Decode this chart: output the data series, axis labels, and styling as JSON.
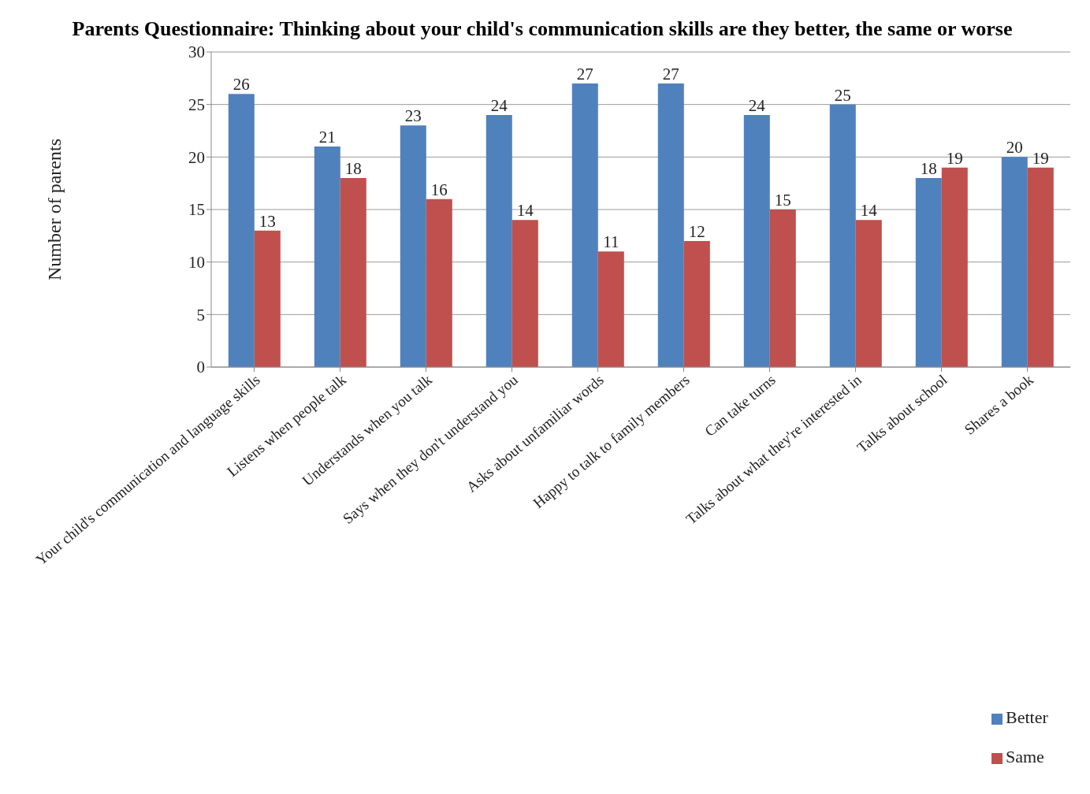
{
  "chart_data": {
    "type": "bar",
    "title": "Parents Questionnaire: Thinking about your child's communication skills are they better, the same or worse",
    "ylabel": "Number of parents",
    "categories": [
      "Your child's communication and language skills",
      "Listens when people talk",
      "Understands when you talk",
      "Says when they don't understand you",
      "Asks about unfamiliar words",
      "Happy to talk to family members",
      "Can take turns",
      "Talks about what they're interested in",
      "Talks about school",
      "Shares a book"
    ],
    "series": [
      {
        "name": "Better",
        "color": "#4f81bd",
        "values": [
          26,
          21,
          23,
          24,
          27,
          27,
          24,
          25,
          18,
          20
        ]
      },
      {
        "name": "Same",
        "color": "#c0504d",
        "values": [
          13,
          18,
          16,
          14,
          11,
          12,
          15,
          14,
          19,
          19
        ]
      }
    ],
    "ylim": [
      0,
      30
    ],
    "yticks": [
      0,
      5,
      10,
      15,
      20,
      25,
      30
    ],
    "grid": "y",
    "legend": "bottom right",
    "data_labels": true
  }
}
